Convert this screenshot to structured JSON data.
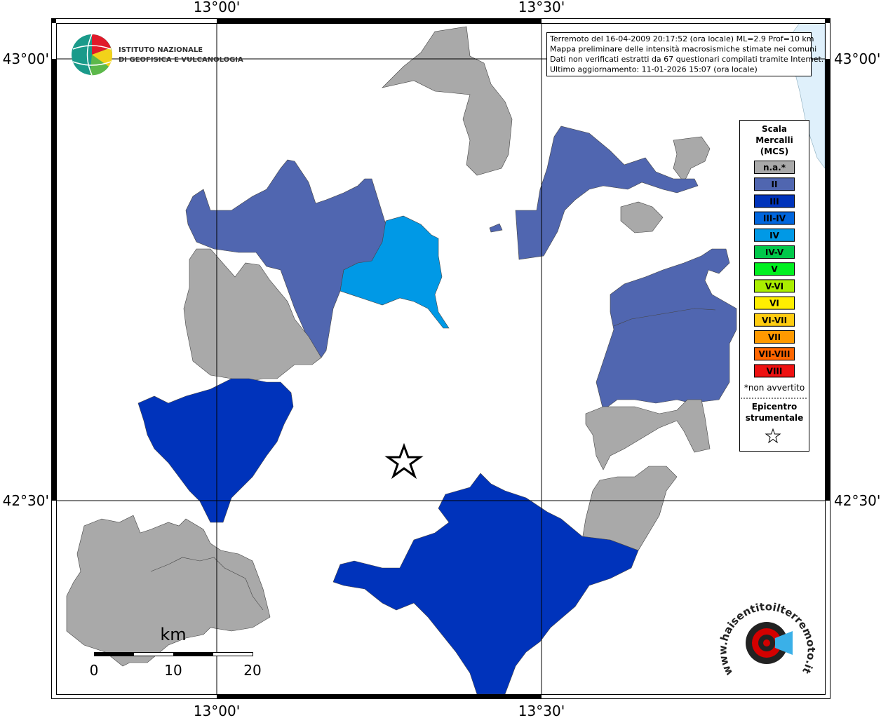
{
  "map": {
    "longitude_labels": [
      "13°00'",
      "13°30'"
    ],
    "latitude_labels": [
      "43°00'",
      "42°30'"
    ],
    "logo": {
      "line1": "ISTITUTO NAZIONALE",
      "line2": "DI GEOFISICA E VULCANOLOGIA"
    },
    "info": [
      "Terremoto del 16-04-2009 20:17:52 (ora locale) ML=2.9 Prof=10 km",
      "Mappa preliminare delle intensità macrosismiche stimate nei comuni",
      "Dati non verificati estratti da 67 questionari compilati tramite Internet.",
      "Ultimo aggiornamento: 11-01-2026 15:07 (ora locale)"
    ],
    "legend": {
      "title": [
        "Scala",
        "Mercalli",
        "(MCS)"
      ],
      "items": [
        {
          "label": "n.a.*",
          "color": "#a9a9a9"
        },
        {
          "label": "II",
          "color": "#5066b0"
        },
        {
          "label": "III",
          "color": "#0033bb"
        },
        {
          "label": "III-IV",
          "color": "#0066dd"
        },
        {
          "label": "IV",
          "color": "#0099e6"
        },
        {
          "label": "IV-V",
          "color": "#00c84a"
        },
        {
          "label": "V",
          "color": "#00f020"
        },
        {
          "label": "V-VI",
          "color": "#aaee00"
        },
        {
          "label": "VI",
          "color": "#ffee00"
        },
        {
          "label": "VI-VII",
          "color": "#ffcc11"
        },
        {
          "label": "VII",
          "color": "#ff9900"
        },
        {
          "label": "VII-VIII",
          "color": "#ff6600"
        },
        {
          "label": "VIII",
          "color": "#ee1111"
        }
      ],
      "note": "*non avvertito",
      "epicenter": [
        "Epicentro",
        "strumentale"
      ]
    },
    "scale_bar": {
      "unit": "km",
      "labels": [
        "0",
        "10",
        "20"
      ]
    },
    "site": "www.haisentitoilterremoto.it"
  }
}
